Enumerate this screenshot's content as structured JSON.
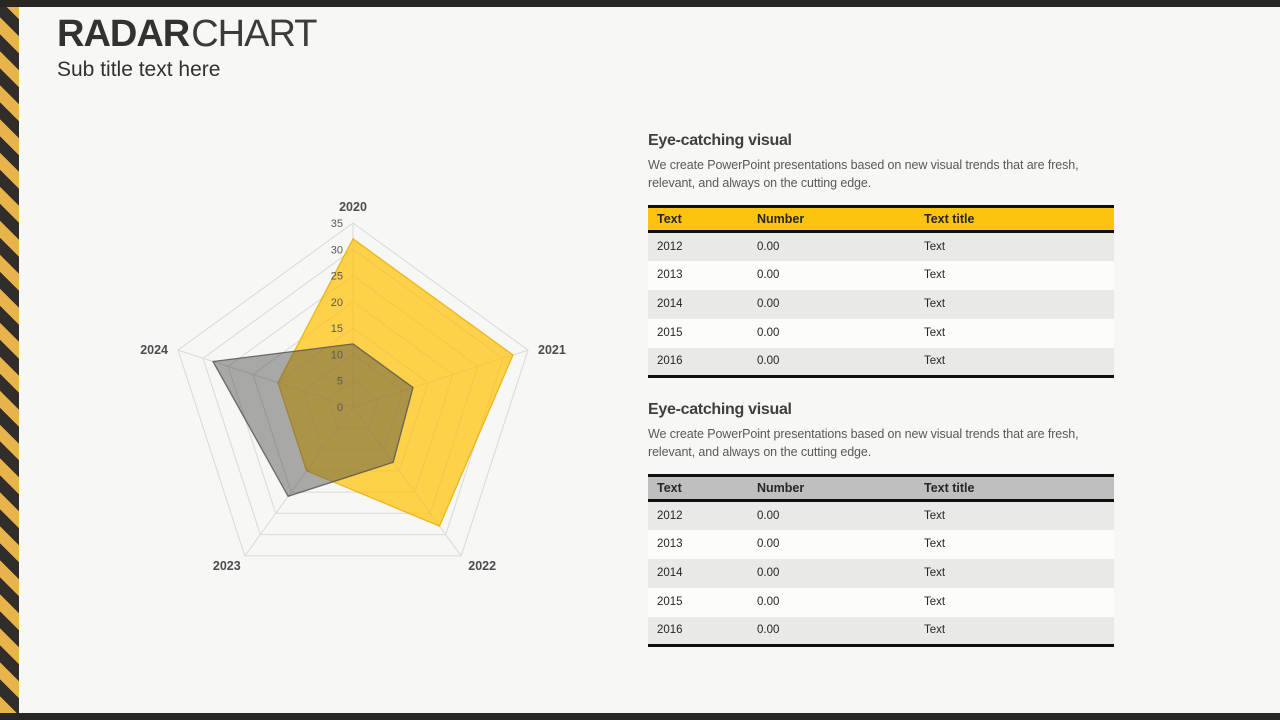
{
  "slide": {
    "title_bold": "RADAR",
    "title_light": "CHART",
    "subtitle": "Sub title text here"
  },
  "chart_data": {
    "type": "radar",
    "title": "",
    "categories": [
      "2020",
      "2021",
      "2022",
      "2023",
      "2024"
    ],
    "series": [
      {
        "name": "yellow-series",
        "color": "#FFC000",
        "fill_opacity": 0.7,
        "stroke": "#E6AC00",
        "values": [
          32,
          32,
          28,
          15,
          15
        ]
      },
      {
        "name": "gray-series",
        "color": "#464646",
        "fill_opacity": 0.45,
        "stroke": "#505050",
        "values": [
          12,
          12,
          13,
          21,
          28
        ]
      }
    ],
    "r_axis": {
      "min": 0,
      "max": 35,
      "step": 5
    },
    "tick_labels": [
      "0",
      "5",
      "10",
      "15",
      "20",
      "25",
      "30",
      "35"
    ],
    "grid": true,
    "grid_color": "#D9D9D9",
    "tick_color": "#595959",
    "category_color": "#4D4D4D",
    "legend_position": "none"
  },
  "sections": [
    {
      "heading": "Eye-catching visual",
      "body": "We create PowerPoint presentations based on new visual trends that are fresh, relevant, and always on the cutting edge.",
      "table": {
        "header_bg": "#FDC40F",
        "columns": [
          "Text",
          "Number",
          "Text title"
        ],
        "rows": [
          [
            "2012",
            "0.00",
            "Text"
          ],
          [
            "2013",
            "0.00",
            "Text"
          ],
          [
            "2014",
            "0.00",
            "Text"
          ],
          [
            "2015",
            "0.00",
            "Text"
          ],
          [
            "2016",
            "0.00",
            "Text"
          ]
        ]
      }
    },
    {
      "heading": "Eye-catching visual",
      "body": "We create PowerPoint presentations based on new visual trends that are fresh, relevant, and always on the cutting edge.",
      "table": {
        "header_bg": "#BFBFBF",
        "columns": [
          "Text",
          "Number",
          "Text title"
        ],
        "rows": [
          [
            "2012",
            "0.00",
            "Text"
          ],
          [
            "2013",
            "0.00",
            "Text"
          ],
          [
            "2014",
            "0.00",
            "Text"
          ],
          [
            "2015",
            "0.00",
            "Text"
          ],
          [
            "2016",
            "0.00",
            "Text"
          ]
        ]
      }
    }
  ],
  "theme": {
    "background": "#F7F7F6",
    "frame_bar": "#282724",
    "stripe_yellow": "#E8B34B",
    "stripe_dark": "#302D2A",
    "accent_yellow": "#FDC40F",
    "accent_gray": "#BFBFBF"
  }
}
